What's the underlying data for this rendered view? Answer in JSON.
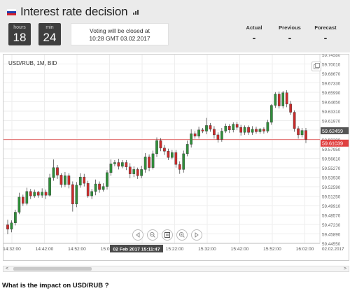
{
  "header": {
    "title": "Interest rate decision",
    "flag_colors": [
      "#ffffff",
      "#1f3fae",
      "#d4202c"
    ],
    "timer": {
      "hours_label": "hours",
      "hours_value": "18",
      "mins_label": "min",
      "mins_value": "24"
    },
    "vote_line1": "Voting will be closed at",
    "vote_line2": "10:28 GMT 03.02.2017",
    "stats": {
      "actual_label": "Actual",
      "actual_value": "-",
      "previous_label": "Previous",
      "previous_value": "-",
      "forecast_label": "Forecast",
      "forecast_value": "-"
    }
  },
  "chart": {
    "instrument_label": "USD/RUB, 1M, BID",
    "current_price_label": "59.62459",
    "line_price_label": "59.61039",
    "crosshair_time": "02 Feb 2017 15:11:47",
    "colors": {
      "up": "#2f8f3a",
      "down": "#cc2b2b",
      "price_tag": "#555555",
      "line_tag": "#e04040"
    },
    "toolbar_icons": [
      "scroll-left-icon",
      "zoom-out-icon",
      "reset-zoom-icon",
      "zoom-in-icon",
      "scroll-right-icon"
    ]
  },
  "chart_data": {
    "type": "candlestick",
    "title": "USD/RUB, 1M, BID",
    "y_ticks": [
      "59.74580",
      "59.70010",
      "59.68670",
      "59.67330",
      "59.65990",
      "59.64650",
      "59.63310",
      "59.61970",
      "59.60630",
      "59.59290",
      "59.57950",
      "59.56610",
      "59.55270",
      "59.53930",
      "59.52590",
      "59.51250",
      "59.49910",
      "59.48570",
      "59.47230",
      "59.45890",
      "59.44550"
    ],
    "x_ticks": [
      "14:32:00",
      "14:42:00",
      "14:52:00",
      "15:02:00",
      "15:22:00",
      "15:32:00",
      "15:42:00",
      "15:52:00",
      "16:02:00"
    ],
    "date_label": "02.02.2017",
    "ylim": [
      59.4455,
      59.7458
    ],
    "candles": [
      [
        59.475,
        59.468,
        59.483,
        59.46
      ],
      [
        59.468,
        59.478,
        59.482,
        59.463
      ],
      [
        59.478,
        59.495,
        59.499,
        59.474
      ],
      [
        59.495,
        59.519,
        59.526,
        59.492
      ],
      [
        59.519,
        59.509,
        59.523,
        59.505
      ],
      [
        59.509,
        59.528,
        59.534,
        59.506
      ],
      [
        59.528,
        59.521,
        59.532,
        59.516
      ],
      [
        59.521,
        59.527,
        59.531,
        59.518
      ],
      [
        59.527,
        59.522,
        59.529,
        59.518
      ],
      [
        59.522,
        59.527,
        59.533,
        59.518
      ],
      [
        59.527,
        59.522,
        59.531,
        59.516
      ],
      [
        59.522,
        59.55,
        59.556,
        59.52
      ],
      [
        59.55,
        59.566,
        59.579,
        59.545
      ],
      [
        59.566,
        59.554,
        59.57,
        59.548
      ],
      [
        59.554,
        59.539,
        59.557,
        59.534
      ],
      [
        59.539,
        59.553,
        59.559,
        59.535
      ],
      [
        59.553,
        59.539,
        59.557,
        59.533
      ],
      [
        59.539,
        59.508,
        59.544,
        59.496
      ],
      [
        59.508,
        59.538,
        59.543,
        59.503
      ],
      [
        59.538,
        59.551,
        59.557,
        59.534
      ],
      [
        59.551,
        59.541,
        59.556,
        59.536
      ],
      [
        59.541,
        59.521,
        59.545,
        59.518
      ],
      [
        59.521,
        59.528,
        59.532,
        59.516
      ],
      [
        59.528,
        59.54,
        59.547,
        59.522
      ],
      [
        59.54,
        59.531,
        59.544,
        59.526
      ],
      [
        59.531,
        59.536,
        59.541,
        59.528
      ],
      [
        59.536,
        59.558,
        59.562,
        59.531
      ],
      [
        59.558,
        59.572,
        59.579,
        59.553
      ],
      [
        59.572,
        59.574,
        59.578,
        59.568
      ],
      [
        59.574,
        59.568,
        59.58,
        59.563
      ],
      [
        59.568,
        59.574,
        59.578,
        59.565
      ],
      [
        59.574,
        59.567,
        59.578,
        59.562
      ],
      [
        59.567,
        59.556,
        59.573,
        59.549
      ],
      [
        59.556,
        59.563,
        59.568,
        59.551
      ],
      [
        59.563,
        59.553,
        59.566,
        59.548
      ],
      [
        59.553,
        59.563,
        59.569,
        59.549
      ],
      [
        59.563,
        59.583,
        59.589,
        59.558
      ],
      [
        59.583,
        59.566,
        59.587,
        59.56
      ],
      [
        59.566,
        59.588,
        59.593,
        59.563
      ],
      [
        59.588,
        59.609,
        59.614,
        59.583
      ],
      [
        59.609,
        59.597,
        59.613,
        59.592
      ],
      [
        59.597,
        59.592,
        59.602,
        59.586
      ],
      [
        59.592,
        59.582,
        59.596,
        59.578
      ],
      [
        59.582,
        59.59,
        59.594,
        59.579
      ],
      [
        59.59,
        59.571,
        59.594,
        59.566
      ],
      [
        59.571,
        59.563,
        59.576,
        59.556
      ],
      [
        59.563,
        59.588,
        59.593,
        59.558
      ],
      [
        59.588,
        59.603,
        59.609,
        59.584
      ],
      [
        59.603,
        59.62,
        59.627,
        59.598
      ],
      [
        59.62,
        59.616,
        59.624,
        59.612
      ],
      [
        59.616,
        59.626,
        59.631,
        59.612
      ],
      [
        59.626,
        59.624,
        59.629,
        59.621
      ],
      [
        59.624,
        59.633,
        59.645,
        59.619
      ],
      [
        59.633,
        59.627,
        59.637,
        59.623
      ],
      [
        59.627,
        59.618,
        59.632,
        59.612
      ],
      [
        59.618,
        59.611,
        59.622,
        59.606
      ],
      [
        59.611,
        59.624,
        59.629,
        59.607
      ],
      [
        59.624,
        59.632,
        59.636,
        59.621
      ],
      [
        59.632,
        59.626,
        59.635,
        59.621
      ],
      [
        59.626,
        59.635,
        59.638,
        59.622
      ],
      [
        59.635,
        59.63,
        59.639,
        59.626
      ],
      [
        59.63,
        59.622,
        59.634,
        59.617
      ],
      [
        59.622,
        59.63,
        59.633,
        59.618
      ],
      [
        59.63,
        59.622,
        59.633,
        59.618
      ],
      [
        59.622,
        59.627,
        59.632,
        59.618
      ],
      [
        59.627,
        59.623,
        59.631,
        59.62
      ],
      [
        59.623,
        59.627,
        59.629,
        59.62
      ],
      [
        59.627,
        59.624,
        59.63,
        59.62
      ],
      [
        59.624,
        59.638,
        59.642,
        59.621
      ],
      [
        59.638,
        59.665,
        59.667,
        59.634
      ],
      [
        59.665,
        59.683,
        59.686,
        59.661
      ],
      [
        59.683,
        59.664,
        59.687,
        59.66
      ],
      [
        59.664,
        59.685,
        59.688,
        59.66
      ],
      [
        59.685,
        59.667,
        59.689,
        59.662
      ],
      [
        59.667,
        59.654,
        59.672,
        59.65
      ],
      [
        59.654,
        59.628,
        59.657,
        59.623
      ],
      [
        59.628,
        59.618,
        59.632,
        59.612
      ],
      [
        59.618,
        59.625,
        59.629,
        59.614
      ],
      [
        59.625,
        59.611,
        59.629,
        59.605
      ]
    ],
    "current_price": 59.62459,
    "line_price": 59.61039,
    "grid": true
  },
  "scrollbar": {
    "left_arrow": "<",
    "right_arrow": ">"
  },
  "footer": {
    "question": "What is the impact on USD/RUB ?"
  }
}
